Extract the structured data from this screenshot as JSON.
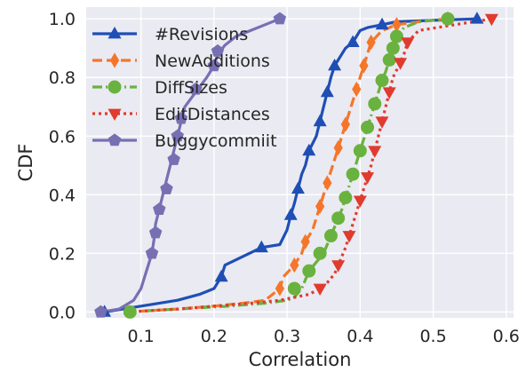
{
  "chart_data": {
    "type": "line",
    "xlabel": "Correlation",
    "ylabel": "CDF",
    "xlim": [
      0.025,
      0.61
    ],
    "ylim": [
      -0.02,
      1.04
    ],
    "xticks": [
      0.1,
      0.2,
      0.3,
      0.4,
      0.5,
      0.6
    ],
    "xtick_labels": [
      "0.1",
      "0.2",
      "0.3",
      "0.4",
      "0.5",
      "0.6"
    ],
    "yticks": [
      0.0,
      0.2,
      0.4,
      0.6,
      0.8,
      1.0
    ],
    "ytick_labels": [
      "0.0",
      "0.2",
      "0.4",
      "0.6",
      "0.8",
      "1.0"
    ],
    "grid": true,
    "legend_position": "upper-left",
    "background": "#eaeaf2",
    "series": [
      {
        "name": "#Revisions",
        "color": "#1f4fb5",
        "dash": "solid",
        "marker": "triangle-up",
        "points": [
          [
            0.05,
            0.0
          ],
          [
            0.1,
            0.02
          ],
          [
            0.15,
            0.04
          ],
          [
            0.18,
            0.06
          ],
          [
            0.2,
            0.08
          ],
          [
            0.21,
            0.12
          ],
          [
            0.215,
            0.16
          ],
          [
            0.24,
            0.19
          ],
          [
            0.265,
            0.22
          ],
          [
            0.29,
            0.23
          ],
          [
            0.3,
            0.28
          ],
          [
            0.305,
            0.33
          ],
          [
            0.31,
            0.37
          ],
          [
            0.315,
            0.42
          ],
          [
            0.32,
            0.47
          ],
          [
            0.325,
            0.5
          ],
          [
            0.33,
            0.55
          ],
          [
            0.34,
            0.6
          ],
          [
            0.345,
            0.65
          ],
          [
            0.35,
            0.7
          ],
          [
            0.355,
            0.75
          ],
          [
            0.36,
            0.8
          ],
          [
            0.365,
            0.84
          ],
          [
            0.375,
            0.88
          ],
          [
            0.38,
            0.9
          ],
          [
            0.39,
            0.92
          ],
          [
            0.4,
            0.96
          ],
          [
            0.41,
            0.97
          ],
          [
            0.43,
            0.98
          ],
          [
            0.45,
            0.99
          ],
          [
            0.5,
            0.995
          ],
          [
            0.56,
            1.0
          ]
        ],
        "marker_points": [
          [
            0.05,
            0.0
          ],
          [
            0.21,
            0.12
          ],
          [
            0.265,
            0.22
          ],
          [
            0.305,
            0.33
          ],
          [
            0.315,
            0.42
          ],
          [
            0.33,
            0.55
          ],
          [
            0.345,
            0.65
          ],
          [
            0.355,
            0.75
          ],
          [
            0.365,
            0.84
          ],
          [
            0.39,
            0.92
          ],
          [
            0.43,
            0.98
          ],
          [
            0.56,
            1.0
          ]
        ]
      },
      {
        "name": "NewAdditions",
        "color": "#f5762a",
        "dash": "dashed",
        "marker": "diamond",
        "points": [
          [
            0.08,
            0.0
          ],
          [
            0.15,
            0.01
          ],
          [
            0.2,
            0.02
          ],
          [
            0.24,
            0.03
          ],
          [
            0.27,
            0.04
          ],
          [
            0.28,
            0.06
          ],
          [
            0.29,
            0.08
          ],
          [
            0.295,
            0.12
          ],
          [
            0.31,
            0.16
          ],
          [
            0.32,
            0.2
          ],
          [
            0.325,
            0.24
          ],
          [
            0.335,
            0.28
          ],
          [
            0.34,
            0.32
          ],
          [
            0.345,
            0.36
          ],
          [
            0.35,
            0.4
          ],
          [
            0.355,
            0.44
          ],
          [
            0.36,
            0.48
          ],
          [
            0.365,
            0.52
          ],
          [
            0.37,
            0.56
          ],
          [
            0.375,
            0.6
          ],
          [
            0.38,
            0.64
          ],
          [
            0.385,
            0.68
          ],
          [
            0.39,
            0.72
          ],
          [
            0.395,
            0.76
          ],
          [
            0.4,
            0.8
          ],
          [
            0.405,
            0.84
          ],
          [
            0.41,
            0.88
          ],
          [
            0.415,
            0.92
          ],
          [
            0.43,
            0.96
          ],
          [
            0.45,
            0.98
          ],
          [
            0.48,
            0.99
          ],
          [
            0.52,
            1.0
          ]
        ],
        "marker_points": [
          [
            0.29,
            0.08
          ],
          [
            0.31,
            0.16
          ],
          [
            0.325,
            0.24
          ],
          [
            0.345,
            0.36
          ],
          [
            0.355,
            0.44
          ],
          [
            0.37,
            0.56
          ],
          [
            0.38,
            0.64
          ],
          [
            0.395,
            0.76
          ],
          [
            0.405,
            0.84
          ],
          [
            0.415,
            0.92
          ],
          [
            0.45,
            0.98
          ],
          [
            0.52,
            1.0
          ]
        ]
      },
      {
        "name": "DiffSizes",
        "color": "#6ab23f",
        "dash": "dashdot",
        "marker": "circle",
        "points": [
          [
            0.08,
            0.0
          ],
          [
            0.15,
            0.01
          ],
          [
            0.22,
            0.02
          ],
          [
            0.27,
            0.03
          ],
          [
            0.3,
            0.04
          ],
          [
            0.31,
            0.05
          ],
          [
            0.32,
            0.08
          ],
          [
            0.325,
            0.11
          ],
          [
            0.33,
            0.14
          ],
          [
            0.34,
            0.17
          ],
          [
            0.35,
            0.2
          ],
          [
            0.355,
            0.23
          ],
          [
            0.36,
            0.26
          ],
          [
            0.365,
            0.29
          ],
          [
            0.37,
            0.32
          ],
          [
            0.375,
            0.35
          ],
          [
            0.38,
            0.39
          ],
          [
            0.385,
            0.43
          ],
          [
            0.39,
            0.47
          ],
          [
            0.395,
            0.51
          ],
          [
            0.4,
            0.55
          ],
          [
            0.405,
            0.59
          ],
          [
            0.41,
            0.63
          ],
          [
            0.415,
            0.67
          ],
          [
            0.42,
            0.71
          ],
          [
            0.425,
            0.75
          ],
          [
            0.43,
            0.79
          ],
          [
            0.435,
            0.82
          ],
          [
            0.44,
            0.86
          ],
          [
            0.445,
            0.9
          ],
          [
            0.45,
            0.94
          ],
          [
            0.46,
            0.97
          ],
          [
            0.48,
            0.99
          ],
          [
            0.52,
            1.0
          ]
        ],
        "marker_points": [
          [
            0.085,
            0.0
          ],
          [
            0.31,
            0.08
          ],
          [
            0.33,
            0.14
          ],
          [
            0.345,
            0.2
          ],
          [
            0.36,
            0.26
          ],
          [
            0.37,
            0.32
          ],
          [
            0.38,
            0.39
          ],
          [
            0.39,
            0.47
          ],
          [
            0.4,
            0.55
          ],
          [
            0.41,
            0.63
          ],
          [
            0.42,
            0.71
          ],
          [
            0.43,
            0.79
          ],
          [
            0.44,
            0.86
          ],
          [
            0.445,
            0.9
          ],
          [
            0.45,
            0.94
          ],
          [
            0.52,
            1.0
          ]
        ]
      },
      {
        "name": "EditDistances",
        "color": "#e03b2e",
        "dash": "dotted",
        "marker": "triangle-down",
        "points": [
          [
            0.08,
            0.0
          ],
          [
            0.15,
            0.01
          ],
          [
            0.2,
            0.02
          ],
          [
            0.25,
            0.03
          ],
          [
            0.29,
            0.04
          ],
          [
            0.31,
            0.05
          ],
          [
            0.33,
            0.06
          ],
          [
            0.345,
            0.08
          ],
          [
            0.355,
            0.1
          ],
          [
            0.365,
            0.13
          ],
          [
            0.37,
            0.16
          ],
          [
            0.375,
            0.19
          ],
          [
            0.38,
            0.22
          ],
          [
            0.385,
            0.26
          ],
          [
            0.39,
            0.3
          ],
          [
            0.395,
            0.34
          ],
          [
            0.4,
            0.38
          ],
          [
            0.405,
            0.42
          ],
          [
            0.41,
            0.46
          ],
          [
            0.415,
            0.5
          ],
          [
            0.42,
            0.55
          ],
          [
            0.425,
            0.6
          ],
          [
            0.43,
            0.65
          ],
          [
            0.435,
            0.7
          ],
          [
            0.44,
            0.75
          ],
          [
            0.445,
            0.8
          ],
          [
            0.455,
            0.85
          ],
          [
            0.46,
            0.88
          ],
          [
            0.465,
            0.92
          ],
          [
            0.48,
            0.96
          ],
          [
            0.53,
            0.98
          ],
          [
            0.58,
            1.0
          ]
        ],
        "marker_points": [
          [
            0.345,
            0.08
          ],
          [
            0.37,
            0.16
          ],
          [
            0.385,
            0.26
          ],
          [
            0.4,
            0.38
          ],
          [
            0.41,
            0.46
          ],
          [
            0.42,
            0.55
          ],
          [
            0.43,
            0.65
          ],
          [
            0.44,
            0.75
          ],
          [
            0.455,
            0.85
          ],
          [
            0.465,
            0.92
          ],
          [
            0.58,
            1.0
          ]
        ]
      },
      {
        "name": "Buggycommiit",
        "color": "#7670b3",
        "dash": "solid",
        "marker": "pentagon",
        "points": [
          [
            0.045,
            0.0
          ],
          [
            0.07,
            0.01
          ],
          [
            0.09,
            0.04
          ],
          [
            0.1,
            0.08
          ],
          [
            0.105,
            0.12
          ],
          [
            0.11,
            0.16
          ],
          [
            0.115,
            0.2
          ],
          [
            0.118,
            0.25
          ],
          [
            0.12,
            0.3
          ],
          [
            0.125,
            0.35
          ],
          [
            0.13,
            0.4
          ],
          [
            0.135,
            0.45
          ],
          [
            0.14,
            0.5
          ],
          [
            0.145,
            0.55
          ],
          [
            0.15,
            0.6
          ],
          [
            0.155,
            0.65
          ],
          [
            0.16,
            0.7
          ],
          [
            0.175,
            0.75
          ],
          [
            0.19,
            0.8
          ],
          [
            0.2,
            0.84
          ],
          [
            0.205,
            0.88
          ],
          [
            0.215,
            0.91
          ],
          [
            0.23,
            0.94
          ],
          [
            0.25,
            0.96
          ],
          [
            0.27,
            0.98
          ],
          [
            0.29,
            1.0
          ]
        ],
        "marker_points": [
          [
            0.045,
            0.0
          ],
          [
            0.115,
            0.2
          ],
          [
            0.12,
            0.27
          ],
          [
            0.125,
            0.35
          ],
          [
            0.135,
            0.42
          ],
          [
            0.145,
            0.52
          ],
          [
            0.15,
            0.6
          ],
          [
            0.155,
            0.66
          ],
          [
            0.175,
            0.76
          ],
          [
            0.2,
            0.84
          ],
          [
            0.205,
            0.89
          ],
          [
            0.29,
            1.0
          ]
        ]
      }
    ]
  }
}
